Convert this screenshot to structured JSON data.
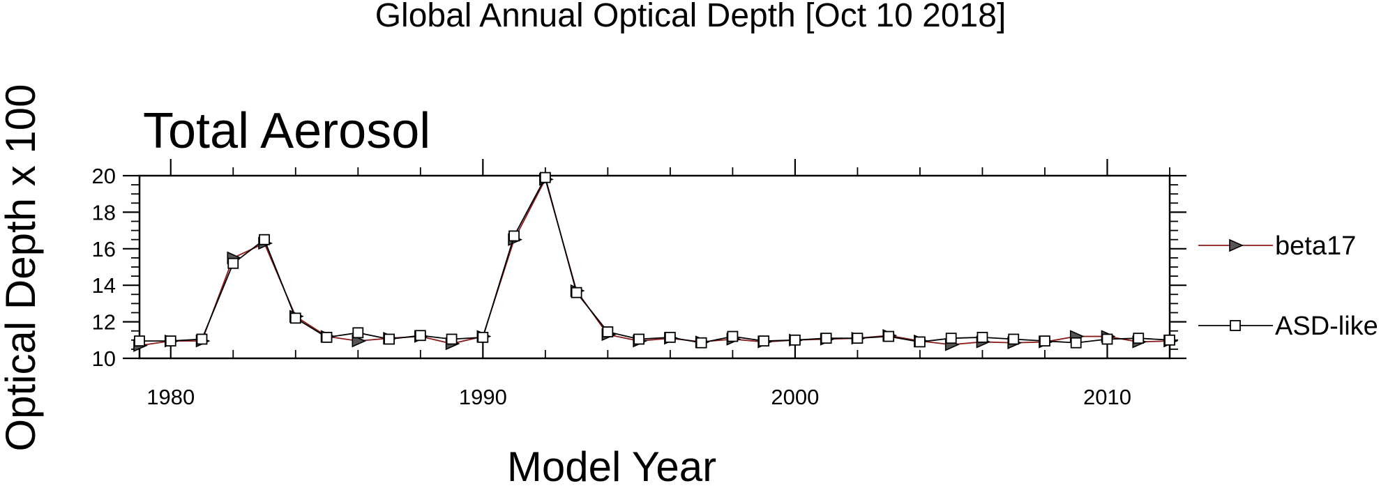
{
  "chart_data": {
    "type": "line",
    "title": "Global Annual Optical Depth [Oct 10 2018]",
    "subtitle": "Total Aerosol",
    "xlabel": "Model Year",
    "ylabel": "Optical Depth x 100",
    "xlim": [
      1979,
      2012
    ],
    "ylim": [
      10,
      20
    ],
    "x_ticks": [
      1980,
      1990,
      2000,
      2010
    ],
    "y_ticks": [
      10,
      12,
      14,
      16,
      18,
      20
    ],
    "grid": false,
    "legend_position": "right",
    "x": [
      1979,
      1980,
      1981,
      1982,
      1983,
      1984,
      1985,
      1986,
      1987,
      1988,
      1989,
      1990,
      1991,
      1992,
      1993,
      1994,
      1995,
      1996,
      1997,
      1998,
      1999,
      2000,
      2001,
      2002,
      2003,
      2004,
      2005,
      2006,
      2007,
      2008,
      2009,
      2010,
      2011,
      2012
    ],
    "series": [
      {
        "name": "beta17",
        "marker": "triangle-right",
        "color": "#8b1a1a",
        "values": [
          10.7,
          10.95,
          10.95,
          15.5,
          16.3,
          12.3,
          11.2,
          10.95,
          11.1,
          11.2,
          10.8,
          11.2,
          16.5,
          19.8,
          13.7,
          11.3,
          10.95,
          11.1,
          10.9,
          11.05,
          10.9,
          11.0,
          11.05,
          11.1,
          11.25,
          10.95,
          10.75,
          10.9,
          10.85,
          10.9,
          11.2,
          11.2,
          10.9,
          10.95
        ]
      },
      {
        "name": "ASD-like",
        "marker": "square",
        "color": "#000000",
        "values": [
          10.95,
          10.95,
          11.05,
          15.2,
          16.5,
          12.2,
          11.15,
          11.4,
          11.05,
          11.25,
          11.05,
          11.15,
          16.7,
          19.9,
          13.6,
          11.45,
          11.05,
          11.15,
          10.85,
          11.2,
          10.95,
          11.0,
          11.1,
          11.1,
          11.2,
          10.9,
          11.1,
          11.15,
          11.05,
          10.95,
          10.85,
          11.05,
          11.1,
          11.0
        ]
      }
    ]
  }
}
